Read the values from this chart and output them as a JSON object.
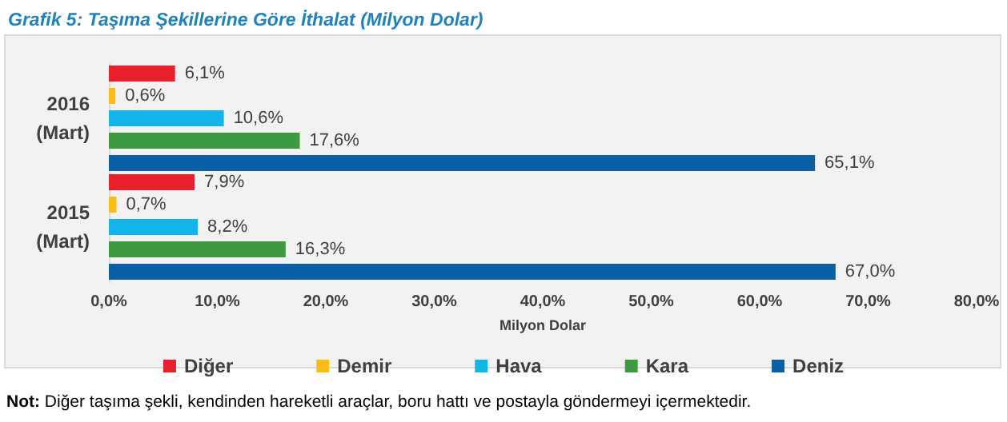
{
  "chart_data": {
    "type": "bar",
    "orientation": "horizontal",
    "title": "Grafik 5: Taşıma Şekillerine Göre İthalat (Milyon Dolar)",
    "xlabel": "Milyon Dolar",
    "categories": [
      "2016\n(Mart)",
      "2015\n(Mart)"
    ],
    "series": [
      {
        "name": "Diğer",
        "color": "#e8202a",
        "values": [
          6.1,
          7.9
        ],
        "value_labels": [
          "6,1%",
          "7,9%"
        ]
      },
      {
        "name": "Demir",
        "color": "#fbbc13",
        "values": [
          0.6,
          0.7
        ],
        "value_labels": [
          "0,6%",
          "0,7%"
        ]
      },
      {
        "name": "Hava",
        "color": "#12b5ea",
        "values": [
          10.6,
          8.2
        ],
        "value_labels": [
          "10,6%",
          "8,2%"
        ]
      },
      {
        "name": "Kara",
        "color": "#3d9a3e",
        "values": [
          17.6,
          16.3
        ],
        "value_labels": [
          "17,6%",
          "16,3%"
        ]
      },
      {
        "name": "Deniz",
        "color": "#0b5fa5",
        "values": [
          65.1,
          67.0
        ],
        "value_labels": [
          "65,1%",
          "67,0%"
        ]
      }
    ],
    "xlim": [
      0,
      80
    ],
    "xticks": [
      {
        "value": 0,
        "label": "0,0%"
      },
      {
        "value": 10,
        "label": "10,0%"
      },
      {
        "value": 20,
        "label": "20,0%"
      },
      {
        "value": 30,
        "label": "30,0%"
      },
      {
        "value": 40,
        "label": "40,0%"
      },
      {
        "value": 50,
        "label": "50,0%"
      },
      {
        "value": 60,
        "label": "60,0%"
      },
      {
        "value": 70,
        "label": "70,0%"
      },
      {
        "value": 80,
        "label": "80,0%"
      }
    ],
    "grid": false,
    "legend": "bottom",
    "annotations": [
      "Not: Diğer taşıma şekli, kendinden hareketli araçlar, boru hattı ve postayla göndermeyi içermektedir."
    ]
  }
}
